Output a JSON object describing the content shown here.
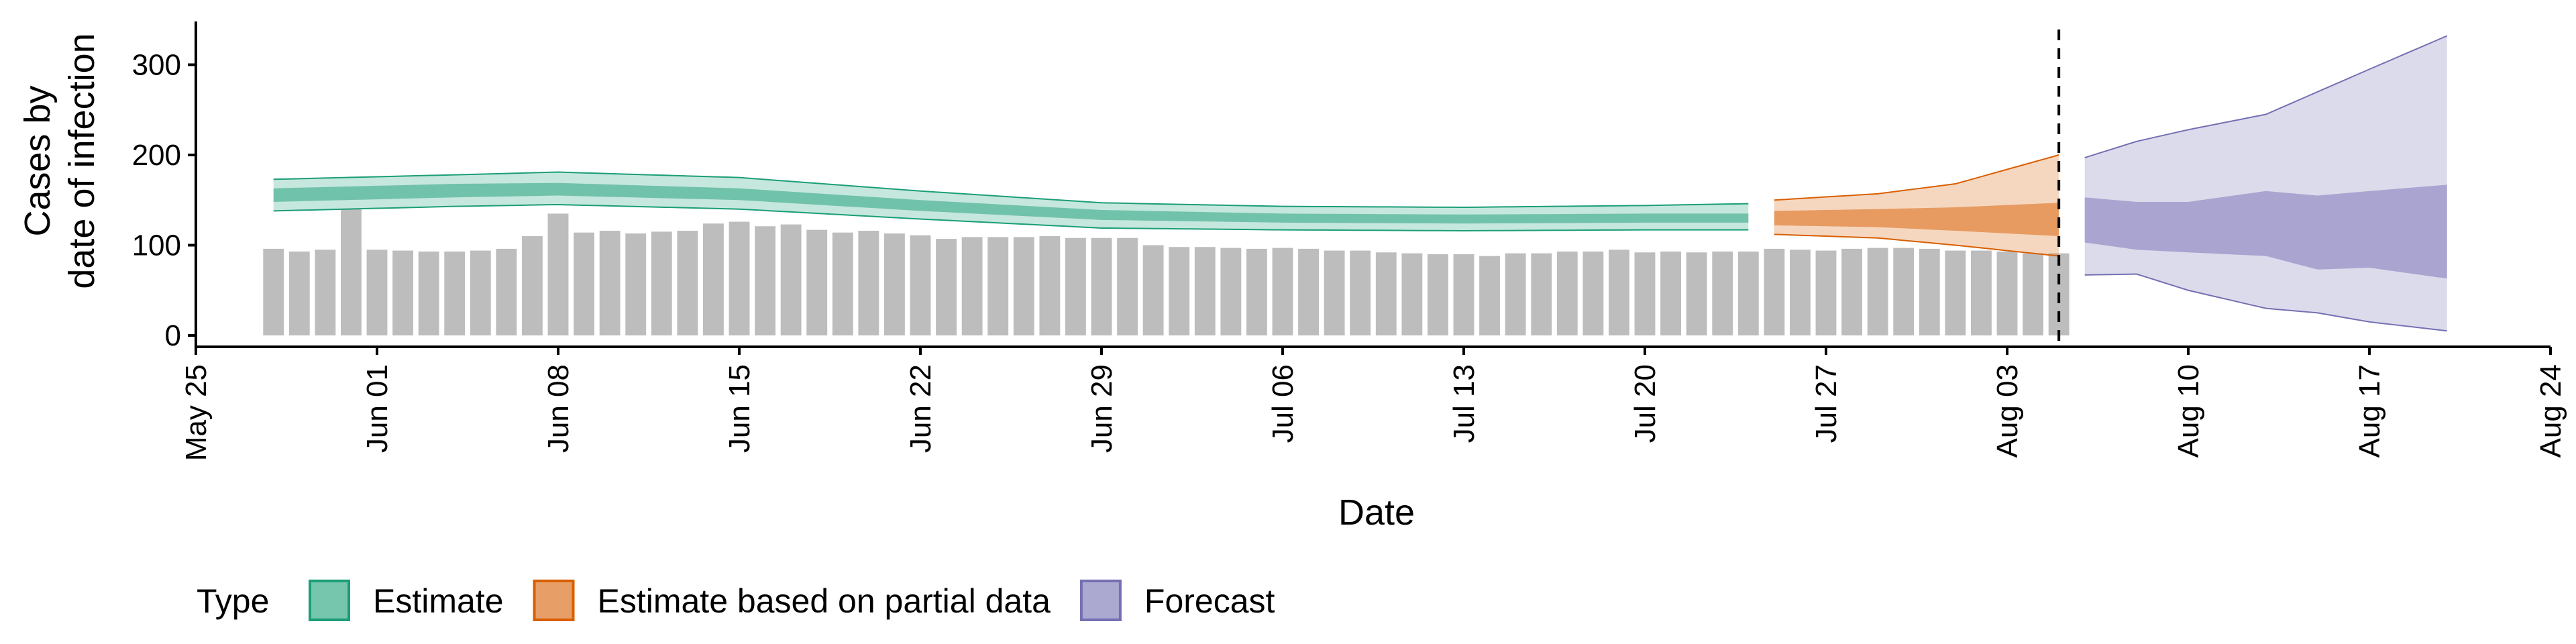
{
  "chart_data": {
    "type": "bar",
    "xlabel": "Date",
    "ylabel": [
      "Cases by",
      "date of infection"
    ],
    "xlim": [
      "2020-05-25",
      "2020-08-24"
    ],
    "ylim": [
      0,
      350
    ],
    "y_ticks": [
      0,
      100,
      200,
      300
    ],
    "x_ticks": [
      "2020-05-25",
      "2020-06-01",
      "2020-06-08",
      "2020-06-15",
      "2020-06-22",
      "2020-06-29",
      "2020-07-06",
      "2020-07-13",
      "2020-07-20",
      "2020-07-27",
      "2020-08-03",
      "2020-08-10",
      "2020-08-17",
      "2020-08-24"
    ],
    "x_tick_labels": [
      "May 25",
      "Jun 01",
      "Jun 08",
      "Jun 15",
      "Jun 22",
      "Jun 29",
      "Jul 06",
      "Jul 13",
      "Jul 20",
      "Jul 27",
      "Aug 03",
      "Aug 10",
      "Aug 17",
      "Aug 24"
    ],
    "grid": false,
    "legend_position": "bottom",
    "reference_line": {
      "date": "2020-08-05",
      "style": "dashed"
    },
    "bars": {
      "start_date": "2020-05-28",
      "color": "#bdbdbd",
      "values": [
        96,
        93,
        95,
        140,
        95,
        94,
        93,
        93,
        94,
        96,
        110,
        135,
        114,
        116,
        113,
        115,
        116,
        124,
        126,
        121,
        123,
        117,
        114,
        116,
        113,
        111,
        107,
        109,
        109,
        109,
        110,
        108,
        108,
        108,
        100,
        98,
        98,
        97,
        96,
        97,
        96,
        94,
        94,
        92,
        91,
        90,
        90,
        88,
        91,
        91,
        93,
        93,
        95,
        92,
        93,
        92,
        93,
        93,
        96,
        95,
        94,
        96,
        97,
        97,
        96,
        94,
        94,
        93,
        91,
        91
      ]
    },
    "series": [
      {
        "name": "Estimate",
        "color": "#1b9e77",
        "start_date": "2020-05-28",
        "end_date": "2020-07-24",
        "keypoints": [
          {
            "date": "2020-05-28",
            "median": 155,
            "lower_50": 148,
            "upper_50": 163,
            "lower_90": 138,
            "upper_90": 173
          },
          {
            "date": "2020-06-04",
            "median": 160,
            "lower_50": 153,
            "upper_50": 168,
            "lower_90": 143,
            "upper_90": 178
          },
          {
            "date": "2020-06-08",
            "median": 162,
            "lower_50": 155,
            "upper_50": 169,
            "lower_90": 145,
            "upper_90": 181
          },
          {
            "date": "2020-06-15",
            "median": 156,
            "lower_50": 150,
            "upper_50": 163,
            "lower_90": 140,
            "upper_90": 175
          },
          {
            "date": "2020-06-22",
            "median": 144,
            "lower_50": 138,
            "upper_50": 150,
            "lower_90": 129,
            "upper_90": 160
          },
          {
            "date": "2020-06-29",
            "median": 133,
            "lower_50": 128,
            "upper_50": 139,
            "lower_90": 119,
            "upper_90": 147
          },
          {
            "date": "2020-07-06",
            "median": 130,
            "lower_50": 125,
            "upper_50": 135,
            "lower_90": 117,
            "upper_90": 143
          },
          {
            "date": "2020-07-13",
            "median": 129,
            "lower_50": 124,
            "upper_50": 134,
            "lower_90": 116,
            "upper_90": 142
          },
          {
            "date": "2020-07-20",
            "median": 130,
            "lower_50": 125,
            "upper_50": 135,
            "lower_90": 117,
            "upper_90": 144
          },
          {
            "date": "2020-07-24",
            "median": 130,
            "lower_50": 125,
            "upper_50": 135,
            "lower_90": 117,
            "upper_90": 146
          }
        ]
      },
      {
        "name": "Estimate based on partial data",
        "color": "#d95f02",
        "start_date": "2020-07-25",
        "end_date": "2020-08-05",
        "keypoints": [
          {
            "date": "2020-07-25",
            "median": 130,
            "lower_50": 122,
            "upper_50": 138,
            "lower_90": 112,
            "upper_90": 150
          },
          {
            "date": "2020-07-29",
            "median": 130,
            "lower_50": 120,
            "upper_50": 140,
            "lower_90": 108,
            "upper_90": 157
          },
          {
            "date": "2020-08-01",
            "median": 130,
            "lower_50": 116,
            "upper_50": 142,
            "lower_90": 100,
            "upper_90": 168
          },
          {
            "date": "2020-08-05",
            "median": 128,
            "lower_50": 110,
            "upper_50": 147,
            "lower_90": 88,
            "upper_90": 200
          }
        ]
      },
      {
        "name": "Forecast",
        "color": "#7570b3",
        "start_date": "2020-08-06",
        "end_date": "2020-08-20",
        "keypoints": [
          {
            "date": "2020-08-06",
            "median": 128,
            "lower_50": 103,
            "upper_50": 153,
            "lower_90": 67,
            "upper_90": 197
          },
          {
            "date": "2020-08-08",
            "median": 120,
            "lower_50": 95,
            "upper_50": 148,
            "lower_90": 68,
            "upper_90": 215
          },
          {
            "date": "2020-08-10",
            "median": 118,
            "lower_50": 92,
            "upper_50": 148,
            "lower_90": 50,
            "upper_90": 228
          },
          {
            "date": "2020-08-13",
            "median": 120,
            "lower_50": 88,
            "upper_50": 160,
            "lower_90": 30,
            "upper_90": 245
          },
          {
            "date": "2020-08-15",
            "median": 118,
            "lower_50": 73,
            "upper_50": 155,
            "lower_90": 25,
            "upper_90": 270
          },
          {
            "date": "2020-08-17",
            "median": 118,
            "lower_50": 75,
            "upper_50": 160,
            "lower_90": 15,
            "upper_90": 295
          },
          {
            "date": "2020-08-20",
            "median": 118,
            "lower_50": 63,
            "upper_50": 167,
            "lower_90": 5,
            "upper_90": 332
          }
        ]
      }
    ],
    "legend": {
      "title": "Type",
      "items": [
        "Estimate",
        "Estimate based on partial data",
        "Forecast"
      ]
    }
  }
}
